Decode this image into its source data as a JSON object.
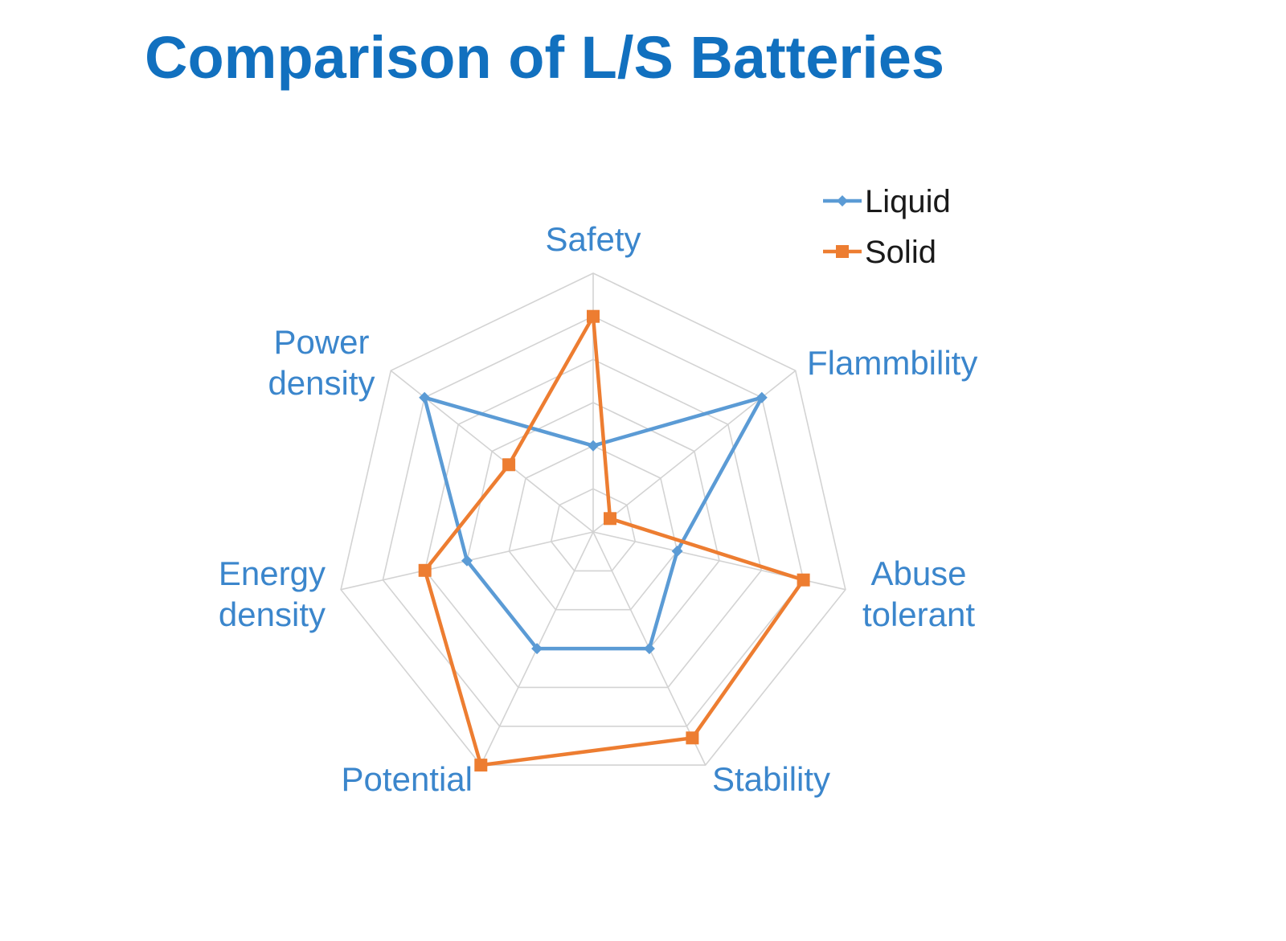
{
  "title": "Comparison of L/S Batteries",
  "colors": {
    "title": "#1170bf",
    "axis_label": "#3b86cc",
    "grid": "#d3d3d3",
    "liquid": "#5b9bd5",
    "solid": "#ed7d31"
  },
  "chart_data": {
    "type": "radar",
    "title": "Comparison of L/S Batteries",
    "axes": [
      {
        "id": "safety",
        "lines": [
          "Safety"
        ]
      },
      {
        "id": "flammbility",
        "lines": [
          "Flammbility"
        ]
      },
      {
        "id": "abuse-tolerant",
        "lines": [
          "Abuse",
          "tolerant"
        ]
      },
      {
        "id": "stability",
        "lines": [
          "Stability"
        ]
      },
      {
        "id": "potential",
        "lines": [
          "Potential"
        ]
      },
      {
        "id": "energy-density",
        "lines": [
          "Energy",
          "density"
        ]
      },
      {
        "id": "power-density",
        "lines": [
          "Power",
          "density"
        ]
      }
    ],
    "range": [
      0,
      6
    ],
    "grid_levels": 6,
    "legend_position": "top-right",
    "series": [
      {
        "name": "Liquid",
        "marker": "diamond",
        "color": "#5b9bd5",
        "values": [
          2,
          5,
          2,
          3,
          3,
          3,
          5
        ]
      },
      {
        "name": "Solid",
        "marker": "square",
        "color": "#ed7d31",
        "values": [
          5,
          0.5,
          5,
          5.3,
          6,
          4,
          2.5
        ]
      }
    ]
  }
}
